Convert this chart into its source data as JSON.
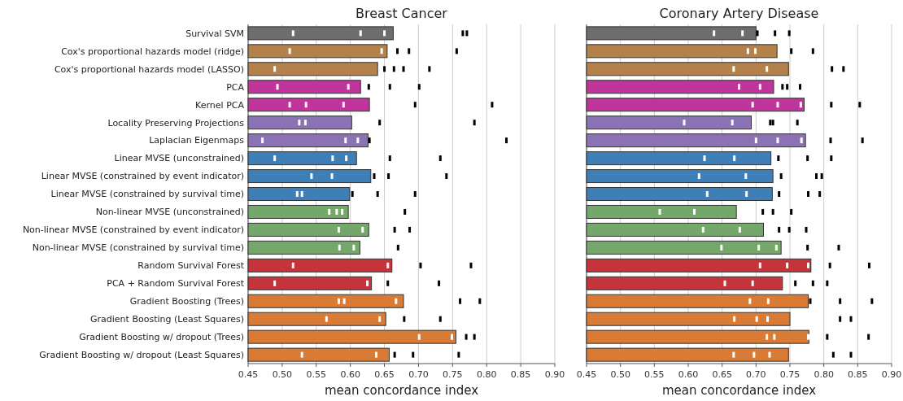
{
  "chart_data": [
    {
      "type": "bar",
      "orientation": "horizontal",
      "title": "Breast Cancer",
      "xlabel": "mean concordance index",
      "grid": "x",
      "xlim": [
        0.45,
        0.9
      ],
      "xticks": [
        {
          "value": 0.45,
          "label": "0.45"
        },
        {
          "value": 0.5,
          "label": "0.50"
        },
        {
          "value": 0.55,
          "label": "0.55"
        },
        {
          "value": 0.6,
          "label": "0.60"
        },
        {
          "value": 0.65,
          "label": "0.65"
        },
        {
          "value": 0.7,
          "label": "0.70"
        },
        {
          "value": 0.75,
          "label": "0.75"
        },
        {
          "value": 0.8,
          "label": "0.80"
        },
        {
          "value": 0.85,
          "label": "0.85"
        },
        {
          "value": 0.9,
          "label": "0.90"
        }
      ],
      "categories": [
        "Survival SVM",
        "Cox's proportional hazards model (ridge)",
        "Cox's proportional hazards model (LASSO)",
        "PCA",
        "Kernel PCA",
        "Locality Preserving Projections",
        "Laplacian Eigenmaps",
        "Linear MVSE (unconstrained)",
        "Linear MVSE (constrained by event indicator)",
        "Linear MVSE (constrained by survival time)",
        "Non-linear MVSE (unconstrained)",
        "Non-linear MVSE (constrained by event indicator)",
        "Non-linear MVSE (constrained by survival time)",
        "Random Survival Forest",
        "PCA + Random Survival Forest",
        "Gradient Boosting (Trees)",
        "Gradient Boosting (Least Squares)",
        "Gradient Boosting w/ dropout (Trees)",
        "Gradient Boosting w/ dropout (Least Squares)"
      ],
      "series": [
        {
          "colors": [
            "#6d6d6d",
            "#b5814a",
            "#b5814a",
            "#c0359b",
            "#c0359b",
            "#8a72b5",
            "#8a72b5",
            "#3e7fb8",
            "#3e7fb8",
            "#3e7fb8",
            "#74a86a",
            "#74a86a",
            "#74a86a",
            "#c5343a",
            "#c5343a",
            "#d97a35",
            "#d97a35",
            "#d97a35",
            "#d97a35"
          ],
          "values": [
            0.663,
            0.654,
            0.64,
            0.615,
            0.628,
            0.602,
            0.626,
            0.609,
            0.63,
            0.599,
            0.597,
            0.627,
            0.614,
            0.661,
            0.631,
            0.678,
            0.652,
            0.755,
            0.657
          ]
        },
        {
          "type": "scatter",
          "color": "#ffffff",
          "values": [
            0.516,
            0.511,
            0.489,
            0.493,
            0.511,
            0.525,
            0.471,
            0.489,
            0.543,
            0.522,
            0.569,
            0.583,
            0.584,
            0.516,
            0.489,
            0.583,
            0.565,
            0.701,
            0.529
          ]
        },
        {
          "type": "scatter",
          "color": "#ffffff",
          "values": [
            0.615,
            0.646,
            null,
            0.597,
            0.535,
            0.534,
            0.593,
            0.574,
            0.573,
            0.529,
            0.58,
            0.618,
            0.605,
            null,
            0.625,
            0.591,
            0.643,
            0.749,
            0.638
          ]
        },
        {
          "type": "scatter",
          "color": "#ffffff",
          "values": [
            0.65,
            null,
            null,
            null,
            0.59,
            null,
            0.611,
            0.594,
            null,
            null,
            0.588,
            null,
            null,
            0.655,
            null,
            0.667,
            null,
            null,
            null
          ]
        },
        {
          "type": "scatter",
          "color": "#000000",
          "values": [
            0.765,
            0.669,
            0.65,
            0.627,
            0.695,
            0.643,
            0.628,
            0.658,
            0.635,
            0.603,
            0.68,
            0.665,
            0.67,
            0.703,
            0.655,
            0.761,
            0.679,
            0.77,
            0.665
          ]
        },
        {
          "type": "scatter",
          "color": "#000000",
          "values": [
            0.771,
            0.686,
            0.664,
            0.658,
            0.808,
            0.782,
            0.829,
            0.732,
            0.656,
            0.64,
            null,
            0.687,
            null,
            0.777,
            0.73,
            0.79,
            0.732,
            0.782,
            0.692
          ]
        },
        {
          "type": "scatter",
          "color": "#000000",
          "values": [
            null,
            0.756,
            0.678,
            0.701,
            null,
            null,
            null,
            null,
            0.741,
            0.695,
            null,
            null,
            null,
            null,
            null,
            null,
            null,
            null,
            0.759
          ]
        },
        {
          "type": "scatter",
          "color": "#000000",
          "values": [
            null,
            null,
            0.716,
            null,
            null,
            null,
            null,
            null,
            null,
            null,
            null,
            null,
            null,
            null,
            null,
            null,
            null,
            null,
            null
          ]
        }
      ]
    },
    {
      "type": "bar",
      "orientation": "horizontal",
      "title": "Coronary Artery Disease",
      "xlabel": "mean concordance index",
      "grid": "x",
      "tick_labels": "x",
      "xlim": [
        0.45,
        0.9
      ],
      "xticks": [
        {
          "value": 0.45,
          "label": "0.45"
        },
        {
          "value": 0.5,
          "label": "0.50"
        },
        {
          "value": 0.55,
          "label": "0.55"
        },
        {
          "value": 0.6,
          "label": "0.60"
        },
        {
          "value": 0.65,
          "label": "0.65"
        },
        {
          "value": 0.7,
          "label": "0.70"
        },
        {
          "value": 0.75,
          "label": "0.75"
        },
        {
          "value": 0.8,
          "label": "0.80"
        },
        {
          "value": 0.85,
          "label": "0.85"
        },
        {
          "value": 0.9,
          "label": "0.90"
        }
      ],
      "categories": [
        null,
        null,
        null,
        null,
        null,
        null,
        null,
        null,
        null,
        null,
        null,
        null,
        null,
        null,
        null,
        null,
        null,
        null,
        null
      ],
      "series": [
        {
          "colors": [
            "#6d6d6d",
            "#b5814a",
            "#b5814a",
            "#c0359b",
            "#c0359b",
            "#8a72b5",
            "#8a72b5",
            "#3e7fb8",
            "#3e7fb8",
            "#3e7fb8",
            "#74a86a",
            "#74a86a",
            "#74a86a",
            "#c5343a",
            "#c5343a",
            "#d97a35",
            "#d97a35",
            "#d97a35",
            "#d97a35"
          ],
          "values": [
            0.7,
            0.731,
            0.748,
            0.726,
            0.771,
            0.693,
            0.773,
            0.722,
            0.725,
            0.724,
            0.671,
            0.711,
            0.737,
            0.781,
            0.739,
            0.777,
            0.75,
            0.778,
            0.748
          ]
        },
        {
          "type": "scatter",
          "color": "#ffffff",
          "values": [
            0.638,
            0.688,
            0.667,
            0.675,
            0.695,
            0.594,
            0.7,
            0.624,
            0.616,
            0.628,
            0.558,
            0.622,
            0.649,
            0.706,
            0.654,
            0.691,
            0.668,
            0.716,
            0.667
          ]
        },
        {
          "type": "scatter",
          "color": "#ffffff",
          "values": [
            0.68,
            0.699,
            0.716,
            0.706,
            0.732,
            0.665,
            0.732,
            0.668,
            0.685,
            0.686,
            0.609,
            0.676,
            0.704,
            0.746,
            0.695,
            0.718,
            0.701,
            0.727,
            0.697
          ]
        },
        {
          "type": "scatter",
          "color": "#ffffff",
          "values": [
            null,
            null,
            null,
            null,
            0.766,
            null,
            0.767,
            null,
            null,
            null,
            null,
            null,
            0.73,
            0.777,
            null,
            null,
            0.717,
            0.777,
            0.72
          ]
        },
        {
          "type": "scatter",
          "color": "#000000",
          "values": [
            0.702,
            0.752,
            0.812,
            0.739,
            0.811,
            0.721,
            0.81,
            0.733,
            0.737,
            0.734,
            0.71,
            0.734,
            0.776,
            0.809,
            0.758,
            0.78,
            0.824,
            0.805,
            0.814
          ]
        },
        {
          "type": "scatter",
          "color": "#000000",
          "values": [
            0.728,
            0.784,
            0.829,
            0.746,
            0.853,
            0.725,
            0.857,
            0.776,
            0.789,
            0.777,
            0.725,
            0.749,
            0.822,
            0.867,
            0.784,
            0.824,
            0.84,
            0.866,
            0.84
          ]
        },
        {
          "type": "scatter",
          "color": "#000000",
          "values": [
            0.749,
            null,
            null,
            0.765,
            null,
            0.761,
            null,
            0.811,
            0.797,
            0.794,
            0.752,
            0.774,
            null,
            null,
            0.805,
            0.871,
            null,
            null,
            null
          ]
        }
      ]
    }
  ]
}
